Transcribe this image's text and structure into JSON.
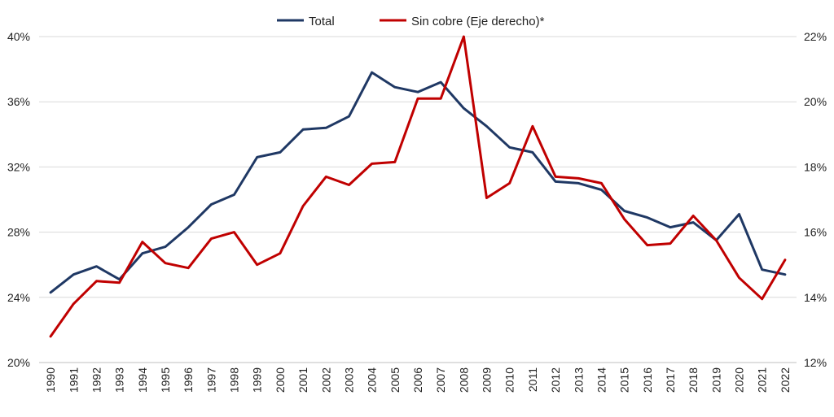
{
  "chart_data": {
    "type": "line",
    "title": "",
    "xlabel": "",
    "ylabel": "",
    "x": [
      "1990",
      "1991",
      "1992",
      "1993",
      "1994",
      "1995",
      "1996",
      "1997",
      "1998",
      "1999",
      "2000",
      "2001",
      "2002",
      "2003",
      "2004",
      "2005",
      "2006",
      "2007",
      "2008",
      "2009",
      "2010",
      "2011",
      "2012",
      "2013",
      "2014",
      "2015",
      "2016",
      "2017",
      "2018",
      "2019",
      "2020",
      "2021",
      "2022"
    ],
    "ylim_left": [
      20,
      40
    ],
    "ylim_right": [
      12,
      22
    ],
    "y_ticks_left": [
      "20%",
      "24%",
      "28%",
      "32%",
      "36%",
      "40%"
    ],
    "y_ticks_right": [
      "12%",
      "14%",
      "16%",
      "18%",
      "20%",
      "22%"
    ],
    "grid": "horizontal",
    "legend_position": "top-center",
    "series": [
      {
        "name": "Total",
        "axis": "left",
        "color": "#1F3864",
        "values": [
          24.3,
          25.4,
          25.9,
          25.1,
          26.7,
          27.1,
          28.3,
          29.7,
          30.3,
          32.6,
          32.9,
          34.3,
          34.4,
          35.1,
          37.8,
          36.9,
          36.6,
          37.2,
          35.6,
          34.5,
          33.2,
          32.9,
          31.1,
          31.0,
          30.6,
          29.3,
          28.9,
          28.3,
          28.6,
          27.5,
          29.1,
          25.7,
          25.4
        ]
      },
      {
        "name": "Sin cobre (Eje derecho)*",
        "axis": "right",
        "color": "#C00000",
        "values": [
          12.8,
          13.8,
          14.5,
          14.45,
          15.7,
          15.05,
          14.9,
          15.8,
          16.0,
          15.0,
          15.35,
          16.8,
          17.7,
          17.45,
          18.1,
          18.15,
          20.1,
          20.1,
          22.0,
          17.05,
          17.5,
          19.25,
          17.7,
          17.65,
          17.5,
          16.4,
          15.6,
          15.65,
          16.5,
          15.75,
          14.6,
          13.95,
          15.15
        ]
      }
    ]
  }
}
